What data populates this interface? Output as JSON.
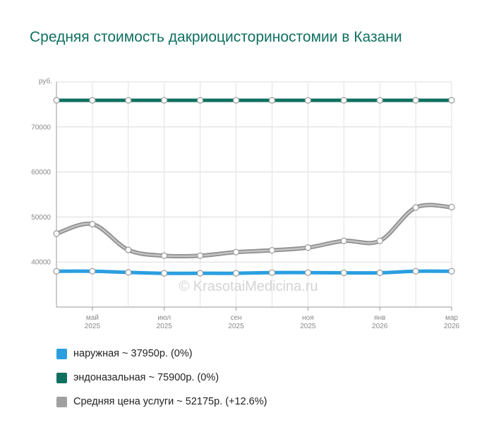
{
  "chart_data": {
    "type": "line",
    "title": "Средняя стоимость дакриоцисториностомии в Казани",
    "y_unit": "руб.",
    "ylim": [
      30000,
      80000
    ],
    "y_ticks": [
      40000,
      50000,
      60000,
      70000
    ],
    "grid": true,
    "legend_position": "bottom",
    "x": [
      "2025-04",
      "2025-05",
      "2025-06",
      "2025-07",
      "2025-08",
      "2025-09",
      "2025-10",
      "2025-11",
      "2025-12",
      "2026-01",
      "2026-02",
      "2026-03"
    ],
    "x_tick_labels": [
      {
        "month": "май",
        "year": "2025",
        "index": 1
      },
      {
        "month": "июл",
        "year": "2025",
        "index": 3
      },
      {
        "month": "сен",
        "year": "2025",
        "index": 5
      },
      {
        "month": "ноя",
        "year": "2025",
        "index": 7
      },
      {
        "month": "янв",
        "year": "2026",
        "index": 9
      },
      {
        "month": "мар",
        "year": "2026",
        "index": 11
      }
    ],
    "series": [
      {
        "name": "наружная",
        "legend": "наружная ~ 37950р. (0%)",
        "color": "#2a9fe0",
        "values": [
          37950,
          37950,
          37700,
          37500,
          37500,
          37500,
          37650,
          37650,
          37600,
          37600,
          37950,
          37950
        ]
      },
      {
        "name": "эндоназальная",
        "legend": "эндоназальная ~ 75900р. (0%)",
        "color": "#0f7060",
        "values": [
          75900,
          75900,
          75900,
          75900,
          75900,
          75900,
          75900,
          75900,
          75900,
          75900,
          75900,
          75900
        ]
      },
      {
        "name": "Средняя цена услуги",
        "legend": "Средняя цена услуги ~ 52175р. (+12.6%)",
        "color": "#a0a0a0",
        "values": [
          46300,
          48400,
          42700,
          41400,
          41400,
          42200,
          42600,
          43200,
          44700,
          44700,
          52100,
          52175
        ]
      }
    ]
  },
  "watermark": "© KrasotaiMedicina.ru"
}
